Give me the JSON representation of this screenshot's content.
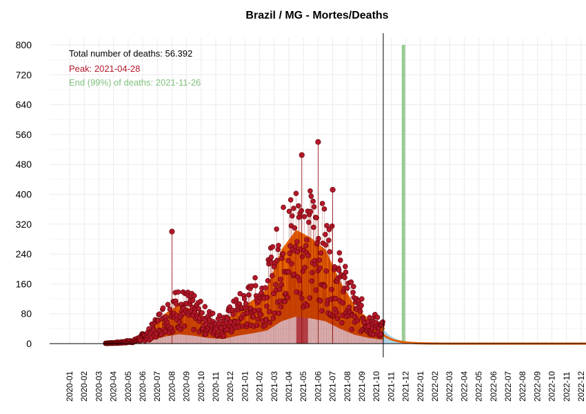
{
  "chart_data": {
    "type": "bar",
    "title": "Brazil / MG - Mortes/Deaths",
    "xlabel": "",
    "ylabel": "",
    "ylim": [
      0,
      800
    ],
    "yticks": [
      0,
      80,
      160,
      240,
      320,
      400,
      480,
      560,
      640,
      720,
      800
    ],
    "xticks": [
      "2020-01",
      "2020-02",
      "2020-03",
      "2020-04",
      "2020-05",
      "2020-06",
      "2020-07",
      "2020-08",
      "2020-09",
      "2020-10",
      "2020-11",
      "2020-12",
      "2021-01",
      "2021-02",
      "2021-03",
      "2021-04",
      "2021-05",
      "2021-06",
      "2021-07",
      "2021-08",
      "2021-09",
      "2021-10",
      "2021-11",
      "2021-12",
      "2022-01",
      "2022-02",
      "2022-03",
      "2022-04",
      "2022-05",
      "2022-06",
      "2022-07",
      "2022-08",
      "2022-09",
      "2022-10",
      "2022-11",
      "2022-12"
    ],
    "grid": true,
    "annotations": {
      "total": "Total number of deaths: 56.392",
      "peak": "Peak: 2021-04-28",
      "end": "End (99%) of deaths: 2021-11-26"
    },
    "observed_last_date": "2021-10-15",
    "peak_date": "2021-04-28",
    "end_date": "2021-11-26",
    "monthly_typical_daily_deaths": [
      {
        "month": "2020-03",
        "value": 1
      },
      {
        "month": "2020-04",
        "value": 3
      },
      {
        "month": "2020-05",
        "value": 8
      },
      {
        "month": "2020-06",
        "value": 28
      },
      {
        "month": "2020-07",
        "value": 75
      },
      {
        "month": "2020-08",
        "value": 100
      },
      {
        "month": "2020-09",
        "value": 85
      },
      {
        "month": "2020-10",
        "value": 60
      },
      {
        "month": "2020-11",
        "value": 50
      },
      {
        "month": "2020-12",
        "value": 85
      },
      {
        "month": "2021-01",
        "value": 110
      },
      {
        "month": "2021-02",
        "value": 140
      },
      {
        "month": "2021-03",
        "value": 240
      },
      {
        "month": "2021-04",
        "value": 290
      },
      {
        "month": "2021-05",
        "value": 270
      },
      {
        "month": "2021-06",
        "value": 240
      },
      {
        "month": "2021-07",
        "value": 160
      },
      {
        "month": "2021-08",
        "value": 95
      },
      {
        "month": "2021-09",
        "value": 60
      },
      {
        "month": "2021-10",
        "value": 40
      }
    ],
    "notable_points": [
      {
        "date": "2020-08-01",
        "value": 300
      },
      {
        "date": "2021-04-28",
        "value": 505
      },
      {
        "date": "2021-06-01",
        "value": 540
      },
      {
        "date": "2021-07-01",
        "value": 412
      }
    ],
    "colors": {
      "points": "#b2182b",
      "range_bars": "#e66101",
      "peak_band": "#b2182b",
      "end_band": "#7fbf7b",
      "projection": "#9ecae1"
    }
  }
}
